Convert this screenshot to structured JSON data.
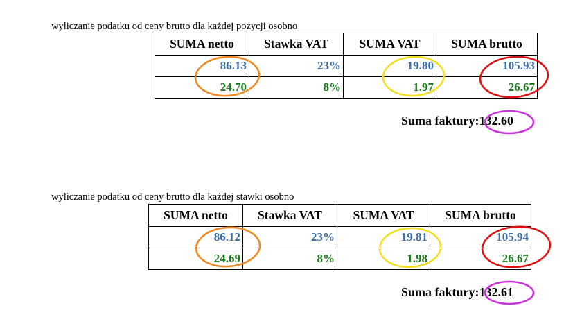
{
  "colors": {
    "row_blue": "#3b6ea5",
    "row_green": "#1a7a1a",
    "ring_netto": "#f08a24",
    "ring_vat": "#f2df1f",
    "ring_brutto": "#dd1111",
    "ring_total": "#cc33dd"
  },
  "section1": {
    "caption": "wyliczanie podatku od ceny brutto dla każdej pozycji osobno",
    "headers": [
      "SUMA netto",
      "Stawka VAT",
      "SUMA VAT",
      "SUMA brutto"
    ],
    "rows": [
      [
        "86.13",
        "23%",
        "19.80",
        "105.93"
      ],
      [
        "24.70",
        "8%",
        "1.97",
        "26.67"
      ]
    ],
    "total_label": "Suma faktury:",
    "total_value": "132.60"
  },
  "section2": {
    "caption": "wyliczanie podatku od ceny brutto dla każdej stawki osobno",
    "headers": [
      "SUMA netto",
      "Stawka VAT",
      "SUMA VAT",
      "SUMA brutto"
    ],
    "rows": [
      [
        "86.12",
        "23%",
        "19.81",
        "105.94"
      ],
      [
        "24.69",
        "8%",
        "1.98",
        "26.67"
      ]
    ],
    "total_label": "Suma faktury:",
    "total_value": "132.61"
  }
}
